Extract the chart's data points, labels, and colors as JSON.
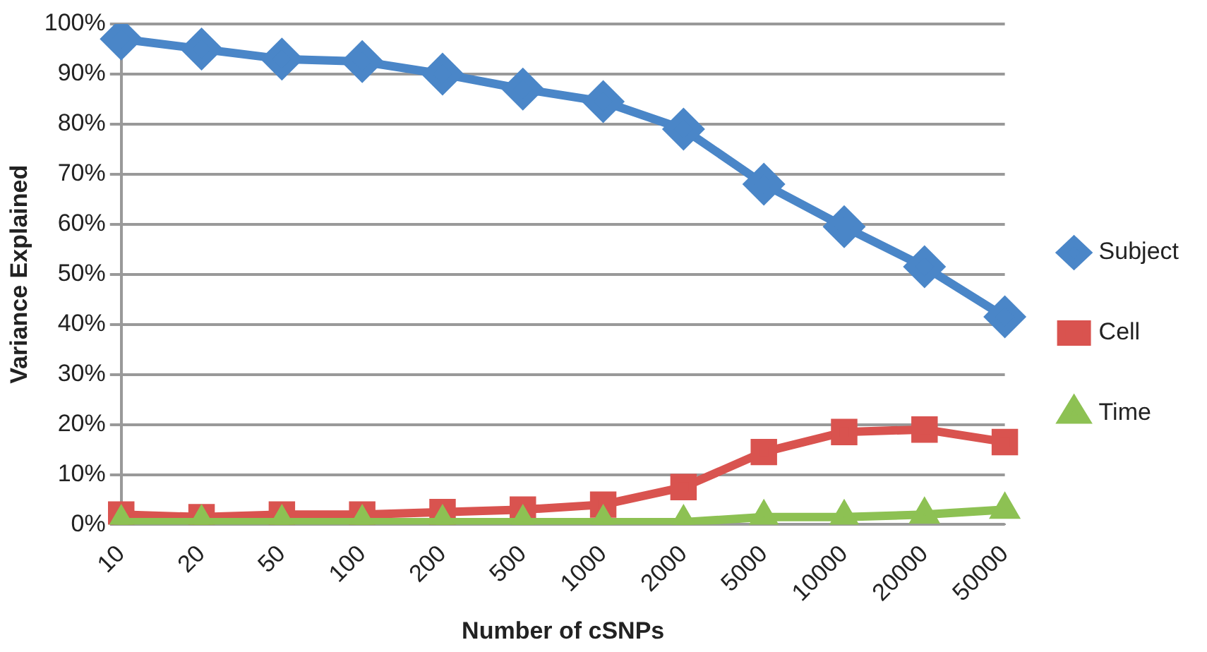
{
  "chart_data": {
    "type": "line",
    "xlabel": "Number of cSNPs",
    "ylabel": "Variance Explained",
    "categories": [
      "10",
      "20",
      "50",
      "100",
      "200",
      "500",
      "1000",
      "2000",
      "5000",
      "10000",
      "20000",
      "50000"
    ],
    "series": [
      {
        "name": "Subject",
        "color": "#4a86c8",
        "marker": "diamond",
        "values": [
          97,
          95,
          93,
          92.5,
          90,
          87,
          84.5,
          79,
          68,
          59.5,
          51.5,
          41.5
        ]
      },
      {
        "name": "Cell",
        "color": "#d9534f",
        "marker": "square",
        "values": [
          2,
          1.5,
          2,
          2,
          2.5,
          3,
          4,
          7.5,
          14.5,
          18.5,
          19,
          16.5
        ]
      },
      {
        "name": "Time",
        "color": "#8dc153",
        "marker": "triangle",
        "values": [
          0.5,
          0.5,
          0.5,
          0.5,
          0.5,
          0.5,
          0.5,
          0.5,
          1.5,
          1.5,
          2,
          3
        ]
      }
    ],
    "ylim": [
      0,
      100
    ],
    "yticks": [
      {
        "value": 0,
        "label": "0%"
      },
      {
        "value": 10,
        "label": "10%"
      },
      {
        "value": 20,
        "label": "20%"
      },
      {
        "value": 30,
        "label": "30%"
      },
      {
        "value": 40,
        "label": "40%"
      },
      {
        "value": 50,
        "label": "50%"
      },
      {
        "value": 60,
        "label": "60%"
      },
      {
        "value": 70,
        "label": "70%"
      },
      {
        "value": 80,
        "label": "80%"
      },
      {
        "value": 90,
        "label": "90%"
      },
      {
        "value": 100,
        "label": "100%"
      }
    ],
    "grid": "y",
    "legend": "right",
    "line_style": "solid"
  }
}
